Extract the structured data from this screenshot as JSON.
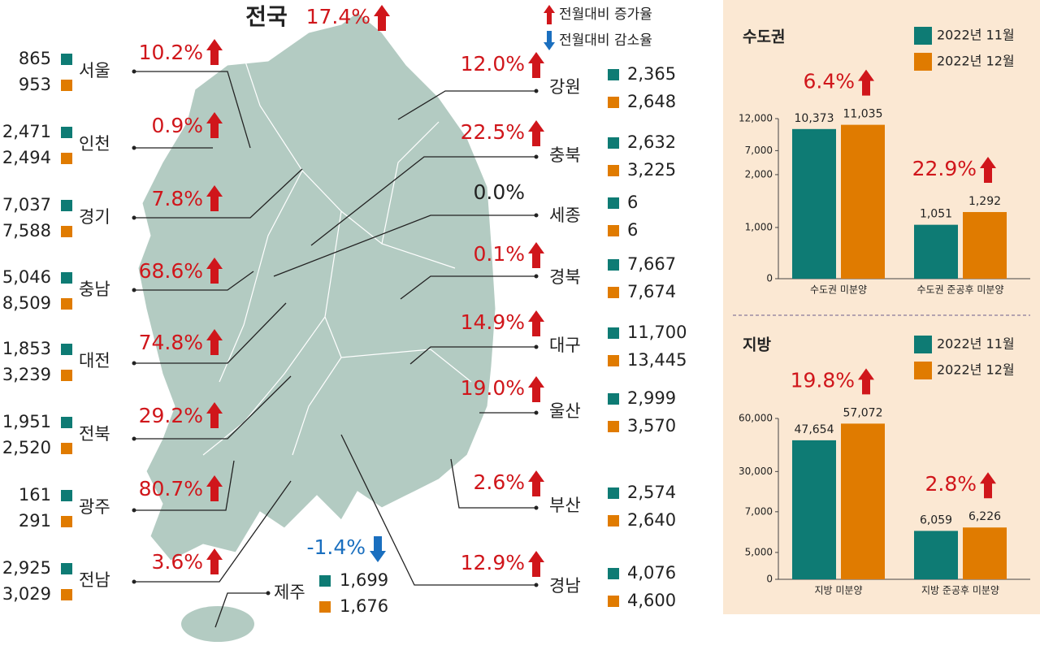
{
  "national": {
    "name": "전국",
    "change": 17.4,
    "change_label": "17.4%"
  },
  "legend": {
    "increase": "전월대비 증가율",
    "decrease": "전월대비 감소율",
    "up_color": "#d0161b",
    "down_color": "#1a6fbf",
    "flat_color": "#222222"
  },
  "map": {
    "series_colors": [
      "#0e7b74",
      "#e07b00"
    ],
    "regions": [
      {
        "name": "서울",
        "nov": 865,
        "dec": 953,
        "change": 10.2,
        "change_label": "10.2%"
      },
      {
        "name": "인천",
        "nov": 2471,
        "nov_label": "2,471",
        "dec": 2494,
        "dec_label": "2,494",
        "change": 0.9,
        "change_label": "0.9%"
      },
      {
        "name": "경기",
        "nov": 7037,
        "nov_label": "7,037",
        "dec": 7588,
        "dec_label": "7,588",
        "change": 7.8,
        "change_label": "7.8%"
      },
      {
        "name": "충남",
        "nov": 5046,
        "nov_label": "5,046",
        "dec": 8509,
        "dec_label": "8,509",
        "change": 68.6,
        "change_label": "68.6%"
      },
      {
        "name": "대전",
        "nov": 1853,
        "nov_label": "1,853",
        "dec": 3239,
        "dec_label": "3,239",
        "change": 74.8,
        "change_label": "74.8%"
      },
      {
        "name": "전북",
        "nov": 1951,
        "nov_label": "1,951",
        "dec": 2520,
        "dec_label": "2,520",
        "change": 29.2,
        "change_label": "29.2%"
      },
      {
        "name": "광주",
        "nov": 161,
        "dec": 291,
        "change": 80.7,
        "change_label": "80.7%"
      },
      {
        "name": "전남",
        "nov": 2925,
        "nov_label": "2,925",
        "dec": 3029,
        "dec_label": "3,029",
        "change": 3.6,
        "change_label": "3.6%"
      },
      {
        "name": "강원",
        "nov": 2365,
        "nov_label": "2,365",
        "dec": 2648,
        "dec_label": "2,648",
        "change": 12.0,
        "change_label": "12.0%"
      },
      {
        "name": "충북",
        "nov": 2632,
        "nov_label": "2,632",
        "dec": 3225,
        "dec_label": "3,225",
        "change": 22.5,
        "change_label": "22.5%"
      },
      {
        "name": "세종",
        "nov": 6,
        "dec": 6,
        "change": 0.0,
        "change_label": "0.0%"
      },
      {
        "name": "경북",
        "nov": 7667,
        "nov_label": "7,667",
        "dec": 7674,
        "dec_label": "7,674",
        "change": 0.1,
        "change_label": "0.1%"
      },
      {
        "name": "대구",
        "nov": 11700,
        "nov_label": "11,700",
        "dec": 13445,
        "dec_label": "13,445",
        "change": 14.9,
        "change_label": "14.9%"
      },
      {
        "name": "울산",
        "nov": 2999,
        "nov_label": "2,999",
        "dec": 3570,
        "dec_label": "3,570",
        "change": 19.0,
        "change_label": "19.0%"
      },
      {
        "name": "부산",
        "nov": 2574,
        "nov_label": "2,574",
        "dec": 2640,
        "dec_label": "2,640",
        "change": 2.6,
        "change_label": "2.6%"
      },
      {
        "name": "경남",
        "nov": 4076,
        "nov_label": "4,076",
        "dec": 4600,
        "dec_label": "4,600",
        "change": 12.9,
        "change_label": "12.9%"
      },
      {
        "name": "제주",
        "nov": 1699,
        "nov_label": "1,699",
        "dec": 1676,
        "dec_label": "1,676",
        "change": -1.4,
        "change_label": "-1.4%"
      }
    ]
  },
  "chart_data": [
    {
      "type": "bar",
      "title": "수도권",
      "categories": [
        "수도권 미분양",
        "수도권 준공후 미분양"
      ],
      "series": [
        {
          "name": "2022년 11월",
          "color": "#0e7b74",
          "values": [
            10373,
            1051
          ],
          "value_labels": [
            "10,373",
            "1,051"
          ]
        },
        {
          "name": "2022년 12월",
          "color": "#e07b00",
          "values": [
            11035,
            1292
          ],
          "value_labels": [
            "11,035",
            "1,292"
          ]
        }
      ],
      "ylim": [
        0,
        12000
      ],
      "yticks": [
        0,
        {
          "value": 1000,
          "label": "1,000"
        },
        {
          "value": 2000,
          "label": "2,000"
        },
        {
          "value": 7000,
          "label": "7,000"
        },
        {
          "value": 12000,
          "label": "12,000"
        }
      ],
      "changes": [
        6.4,
        22.9
      ],
      "change_labels": [
        "6.4%",
        "22.9%"
      ]
    },
    {
      "type": "bar",
      "title": "지방",
      "categories": [
        "지방 미분양",
        "지방 준공후 미분양"
      ],
      "series": [
        {
          "name": "2022년 11월",
          "color": "#0e7b74",
          "values": [
            47654,
            6059
          ],
          "value_labels": [
            "47,654",
            "6,059"
          ]
        },
        {
          "name": "2022년 12월",
          "color": "#e07b00",
          "values": [
            57072,
            6226
          ],
          "value_labels": [
            "57,072",
            "6,226"
          ]
        }
      ],
      "ylim": [
        0,
        60000
      ],
      "yticks": [
        0,
        {
          "value": 5000,
          "label": "5,000"
        },
        {
          "value": 7000,
          "label": "7,000"
        },
        {
          "value": 30000,
          "label": "30,000"
        },
        {
          "value": 60000,
          "label": "60,000"
        }
      ],
      "changes": [
        19.8,
        2.8
      ],
      "change_labels": [
        "19.8%",
        "2.8%"
      ]
    }
  ]
}
